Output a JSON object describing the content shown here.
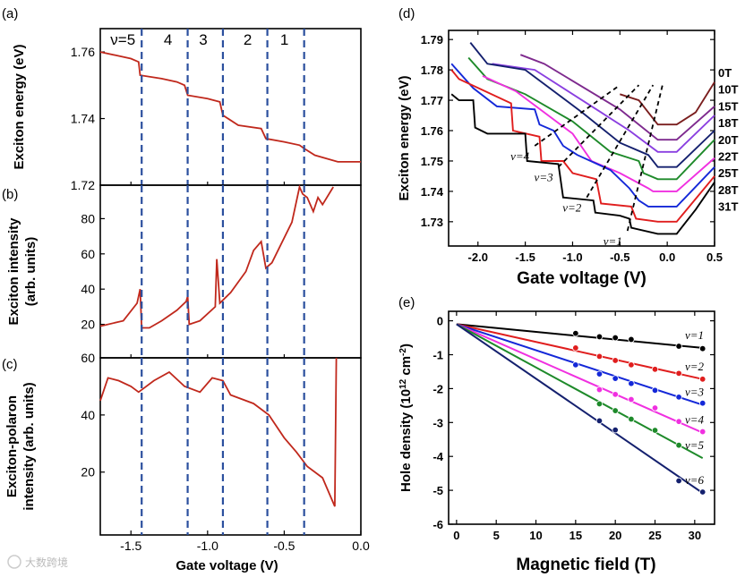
{
  "panel_labels": [
    "(a)",
    "(b)",
    "(c)",
    "(d)",
    "(e)"
  ],
  "watermark": "大数跨境",
  "colors": {
    "left_curve": "#c0281c",
    "dashed_left": "#2b4f9e"
  },
  "chart_data": [
    {
      "id": "a",
      "type": "line",
      "ylabel": "Exciton energy (eV)",
      "xlim": [
        -1.7,
        0.0
      ],
      "ylim": [
        1.72,
        1.767
      ],
      "yticks": [
        1.72,
        1.74,
        1.76
      ],
      "ytick_labels": [
        "1.72",
        "1.74",
        "1.76"
      ],
      "x": [
        -1.7,
        -1.6,
        -1.5,
        -1.45,
        -1.44,
        -1.3,
        -1.2,
        -1.15,
        -1.13,
        -1.0,
        -0.92,
        -0.9,
        -0.8,
        -0.65,
        -0.62,
        -0.5,
        -0.4,
        -0.37,
        -0.3,
        -0.15,
        0.0
      ],
      "y": [
        1.76,
        1.759,
        1.758,
        1.757,
        1.753,
        1.752,
        1.751,
        1.75,
        1.747,
        1.746,
        1.745,
        1.741,
        1.738,
        1.737,
        1.734,
        1.733,
        1.732,
        1.731,
        1.729,
        1.727,
        1.727
      ],
      "filling_lines": {
        "x": [
          -1.43,
          -1.13,
          -0.9,
          -0.61,
          -0.37
        ],
        "labels": [
          "ν=5",
          "4",
          "3",
          "2",
          "1"
        ]
      }
    },
    {
      "id": "b",
      "type": "line",
      "ylabel": [
        "Exciton intensity",
        "(arb. units)"
      ],
      "xlim": [
        -1.7,
        0.0
      ],
      "ylim": [
        1,
        99
      ],
      "yticks": [
        20,
        40,
        60,
        80
      ],
      "ytick_labels": [
        "20",
        "40",
        "60",
        "80"
      ],
      "x": [
        -1.7,
        -1.55,
        -1.46,
        -1.44,
        -1.43,
        -1.38,
        -1.3,
        -1.2,
        -1.14,
        -1.13,
        -1.12,
        -1.05,
        -0.95,
        -0.94,
        -0.92,
        -0.85,
        -0.75,
        -0.7,
        -0.65,
        -0.62,
        -0.58,
        -0.45,
        -0.4,
        -0.38,
        -0.35,
        -0.31,
        -0.28,
        -0.25,
        -0.18
      ],
      "y": [
        19,
        22,
        32,
        40,
        18,
        18,
        22,
        28,
        33,
        36,
        20,
        22,
        30,
        57,
        32,
        38,
        50,
        62,
        67,
        52,
        55,
        78,
        98,
        94,
        92,
        84,
        92,
        88,
        98
      ]
    },
    {
      "id": "c",
      "type": "line",
      "ylabel": [
        "Exciton-polaron",
        "intensity (arb. units)"
      ],
      "xlabel": "Gate voltage (V)",
      "xlim": [
        -1.7,
        0.0
      ],
      "ylim": [
        -2,
        60
      ],
      "xticks": [
        -1.5,
        -1.0,
        -0.5,
        0.0
      ],
      "xtick_labels": [
        "-1.5",
        "-1.0",
        "-0.5",
        "0.0"
      ],
      "yticks": [
        20,
        40,
        60
      ],
      "ytick_labels": [
        "20",
        "40",
        "60"
      ],
      "x": [
        -1.7,
        -1.65,
        -1.58,
        -1.5,
        -1.45,
        -1.35,
        -1.25,
        -1.15,
        -1.05,
        -0.97,
        -0.9,
        -0.85,
        -0.7,
        -0.6,
        -0.5,
        -0.42,
        -0.35,
        -0.25,
        -0.17,
        -0.16
      ],
      "y": [
        45,
        53,
        52,
        50,
        48,
        52,
        55,
        50,
        48,
        53,
        52,
        47,
        44,
        40,
        32,
        27,
        22,
        18,
        8,
        60
      ]
    },
    {
      "id": "d",
      "type": "line",
      "xlabel": "Gate voltage (V)",
      "ylabel": "Exciton energy (eV)",
      "xlim": [
        -2.31,
        0.5
      ],
      "ylim": [
        1.722,
        1.793
      ],
      "xticks": [
        -2.0,
        -1.5,
        -1.0,
        -0.5,
        0.0,
        0.5
      ],
      "xtick_labels": [
        "-2.0",
        "-1.5",
        "-1.0",
        "-0.5",
        "0.0",
        "0.5"
      ],
      "yticks": [
        1.73,
        1.74,
        1.75,
        1.76,
        1.77,
        1.78,
        1.79
      ],
      "ytick_labels": [
        "1.73",
        "1.74",
        "1.75",
        "1.76",
        "1.77",
        "1.78",
        "1.79"
      ],
      "series": [
        {
          "name": "0T",
          "color": "#7a1e1e",
          "x": [
            -0.5,
            -0.3,
            -0.1,
            0.1,
            0.3,
            0.5
          ],
          "y": [
            1.772,
            1.77,
            1.762,
            1.762,
            1.766,
            1.776
          ]
        },
        {
          "name": "10T",
          "color": "#7e2a8e",
          "x": [
            -1.55,
            -1.3,
            -0.5,
            -0.3,
            -0.1,
            0.1,
            0.5
          ],
          "y": [
            1.785,
            1.782,
            1.767,
            1.762,
            1.757,
            1.757,
            1.768
          ]
        },
        {
          "name": "15T",
          "color": "#8a3fe0",
          "x": [
            -1.85,
            -1.4,
            -0.7,
            -0.4,
            -0.1,
            0.1,
            0.5
          ],
          "y": [
            1.782,
            1.78,
            1.766,
            1.76,
            1.753,
            1.753,
            1.765
          ]
        },
        {
          "name": "18T",
          "color": "#14206e",
          "x": [
            -2.08,
            -1.9,
            -1.5,
            -0.9,
            -0.5,
            -0.2,
            -0.1,
            0.1,
            0.5
          ],
          "y": [
            1.789,
            1.782,
            1.78,
            1.766,
            1.756,
            1.752,
            1.748,
            1.748,
            1.76
          ]
        },
        {
          "name": "20T",
          "color": "#1e8a2a",
          "x": [
            -2.1,
            -1.9,
            -1.5,
            -1.0,
            -0.6,
            -0.3,
            -0.25,
            -0.1,
            0.1,
            0.5
          ],
          "y": [
            1.784,
            1.777,
            1.772,
            1.763,
            1.753,
            1.75,
            1.746,
            1.744,
            1.744,
            1.757
          ]
        },
        {
          "name": "22T",
          "color": "#f030e0",
          "x": [
            -1.95,
            -1.6,
            -1.0,
            -0.8,
            -0.5,
            -0.2,
            -0.15,
            0.1,
            0.5
          ],
          "y": [
            1.778,
            1.773,
            1.759,
            1.75,
            1.746,
            1.741,
            1.74,
            1.74,
            1.751
          ]
        },
        {
          "name": "25T",
          "color": "#1428d8",
          "x": [
            -2.28,
            -2.05,
            -1.8,
            -1.4,
            -1.35,
            -1.2,
            -1.1,
            -0.95,
            -0.6,
            -0.4,
            -0.3,
            -0.2,
            0.1,
            0.5
          ],
          "y": [
            1.782,
            1.774,
            1.768,
            1.767,
            1.762,
            1.76,
            1.755,
            1.752,
            1.747,
            1.741,
            1.737,
            1.735,
            1.735,
            1.748
          ]
        },
        {
          "name": "28T",
          "color": "#e01e1e",
          "x": [
            -2.28,
            -2.2,
            -1.65,
            -1.63,
            -1.35,
            -1.33,
            -1.1,
            -1.0,
            -0.75,
            -0.7,
            -0.38,
            -0.33,
            -0.1,
            0.1,
            0.5
          ],
          "y": [
            1.78,
            1.777,
            1.769,
            1.76,
            1.758,
            1.75,
            1.75,
            1.746,
            1.744,
            1.736,
            1.735,
            1.731,
            1.73,
            1.73,
            1.745
          ]
        },
        {
          "name": "31T",
          "color": "#000000",
          "x": [
            -2.28,
            -2.2,
            -2.05,
            -2.03,
            -1.9,
            -1.5,
            -1.48,
            -1.15,
            -1.1,
            -0.78,
            -0.76,
            -0.5,
            -0.4,
            -0.38,
            -0.1,
            0.1,
            0.3,
            0.5
          ],
          "y": [
            1.772,
            1.77,
            1.77,
            1.761,
            1.759,
            1.759,
            1.75,
            1.749,
            1.738,
            1.737,
            1.733,
            1.732,
            1.731,
            1.728,
            1.726,
            1.726,
            1.734,
            1.743
          ]
        }
      ],
      "filling_lines": [
        {
          "label": "ν=4",
          "x": [
            -1.4,
            -0.5
          ],
          "y": [
            1.755,
            1.775
          ]
        },
        {
          "label": "ν=3",
          "x": [
            -1.15,
            -0.3
          ],
          "y": [
            1.748,
            1.775
          ]
        },
        {
          "label": "ν=2",
          "x": [
            -0.85,
            -0.15
          ],
          "y": [
            1.738,
            1.775
          ]
        },
        {
          "label": "ν=1",
          "x": [
            -0.42,
            -0.05
          ],
          "y": [
            1.727,
            1.775
          ]
        }
      ]
    },
    {
      "id": "e",
      "type": "scatter",
      "xlabel": "Magnetic field (T)",
      "ylabel_parts": [
        "Hole density (10",
        "12",
        " cm",
        "-2",
        ")"
      ],
      "xlim": [
        -1,
        32.5
      ],
      "ylim": [
        -6,
        0.28
      ],
      "xticks": [
        0,
        5,
        10,
        15,
        20,
        25,
        30
      ],
      "xtick_labels": [
        "0",
        "5",
        "10",
        "15",
        "20",
        "25",
        "30"
      ],
      "yticks": [
        0,
        -1,
        -2,
        -3,
        -4,
        -5,
        -6
      ],
      "ytick_labels": [
        "0",
        "-1",
        "-2",
        "-3",
        "-4",
        "-5",
        "-6"
      ],
      "series": [
        {
          "name": "ν=1",
          "color": "#000000",
          "fit": [
            [
              0,
              -0.1
            ],
            [
              31,
              -0.8
            ]
          ],
          "x": [
            15,
            18,
            20,
            22,
            28,
            31
          ],
          "y": [
            -0.37,
            -0.47,
            -0.5,
            -0.55,
            -0.75,
            -0.82
          ]
        },
        {
          "name": "ν=2",
          "color": "#e01e1e",
          "fit": [
            [
              0,
              -0.1
            ],
            [
              31,
              -1.72
            ]
          ],
          "x": [
            15,
            18,
            20,
            22,
            25,
            28,
            31
          ],
          "y": [
            -0.8,
            -1.05,
            -1.17,
            -1.3,
            -1.43,
            -1.55,
            -1.72
          ]
        },
        {
          "name": "ν=3",
          "color": "#1428d8",
          "fit": [
            [
              0,
              -0.1
            ],
            [
              31,
              -2.48
            ]
          ],
          "x": [
            15,
            18,
            20,
            22,
            25,
            28,
            31
          ],
          "y": [
            -1.3,
            -1.57,
            -1.7,
            -1.85,
            -2.05,
            -2.25,
            -2.43
          ]
        },
        {
          "name": "ν=4",
          "color": "#f030e0",
          "fit": [
            [
              0,
              -0.1
            ],
            [
              31,
              -3.3
            ]
          ],
          "x": [
            18,
            20,
            22,
            25,
            28,
            31
          ],
          "y": [
            -2.03,
            -2.17,
            -2.32,
            -2.57,
            -2.97,
            -3.27
          ]
        },
        {
          "name": "ν=5",
          "color": "#1e8a2a",
          "fit": [
            [
              0,
              -0.1
            ],
            [
              31,
              -4.05
            ]
          ],
          "x": [
            18,
            20,
            22,
            25,
            28
          ],
          "y": [
            -2.45,
            -2.65,
            -2.9,
            -3.23,
            -3.67
          ]
        },
        {
          "name": "ν=6",
          "color": "#14206e",
          "fit": [
            [
              0,
              -0.1
            ],
            [
              31,
              -5.08
            ]
          ],
          "x": [
            18,
            20,
            28,
            31
          ],
          "y": [
            -2.95,
            -3.22,
            -4.72,
            -5.05
          ]
        }
      ]
    }
  ]
}
